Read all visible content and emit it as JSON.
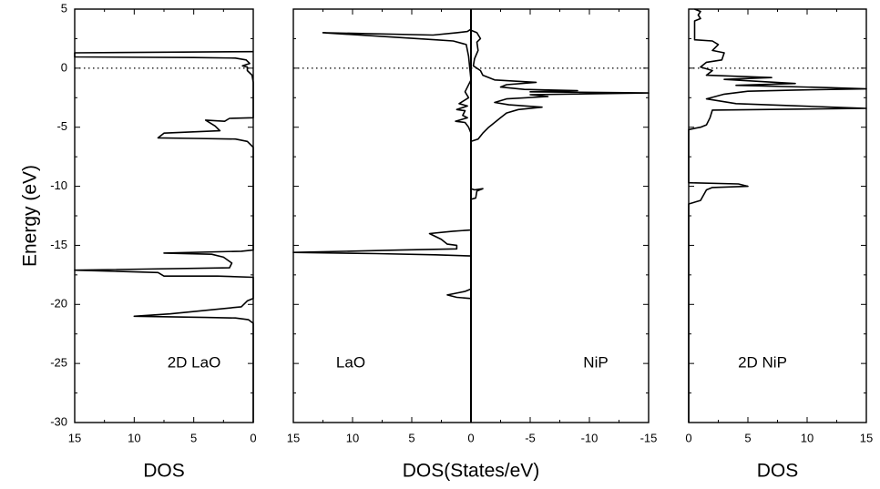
{
  "chart_data": {
    "type": "line",
    "ylabel": "Energy (eV)",
    "ylim": [
      -30,
      5
    ],
    "yticks": [
      "5",
      "0",
      "-5",
      "-10",
      "-15",
      "-20",
      "-25",
      "-30"
    ],
    "panels": [
      {
        "id": "left",
        "xlabel": "DOS",
        "xlim": [
          15,
          0
        ],
        "xticks": [
          "15",
          "10",
          "5",
          "0"
        ],
        "labels": [
          "2D LaO"
        ],
        "fermi_level": 0,
        "series": [
          {
            "points": [
              [
                0,
                1.4
              ],
              [
                15,
                1.3
              ],
              [
                15,
                0.95
              ],
              [
                5,
                0.9
              ],
              [
                1.5,
                0.85
              ],
              [
                0.6,
                0.7
              ],
              [
                0.3,
                0.4
              ],
              [
                0.9,
                0.2
              ],
              [
                0.5,
                0.1
              ],
              [
                0.5,
                -0.2
              ],
              [
                0.1,
                -0.6
              ],
              [
                0,
                -1.2
              ],
              [
                0,
                -4.2
              ],
              [
                2,
                -4.25
              ],
              [
                2.4,
                -4.5
              ],
              [
                4,
                -4.4
              ],
              [
                3.2,
                -4.9
              ],
              [
                2.8,
                -5.3
              ],
              [
                7.5,
                -5.5
              ],
              [
                8,
                -5.9
              ],
              [
                5,
                -5.95
              ],
              [
                1.5,
                -6.0
              ],
              [
                0.5,
                -6.2
              ],
              [
                0.2,
                -6.5
              ],
              [
                0,
                -6.7
              ],
              [
                0,
                -15.4
              ],
              [
                1,
                -15.5
              ],
              [
                7.5,
                -15.65
              ],
              [
                3.5,
                -15.75
              ],
              [
                2.5,
                -16.0
              ],
              [
                1.8,
                -16.5
              ],
              [
                2,
                -16.9
              ],
              [
                15,
                -17.1
              ],
              [
                8,
                -17.3
              ],
              [
                7.5,
                -17.6
              ],
              [
                3,
                -17.6
              ],
              [
                0,
                -17.7
              ],
              [
                0,
                -19.5
              ],
              [
                0.5,
                -19.7
              ],
              [
                1,
                -20.2
              ],
              [
                7,
                -20.8
              ],
              [
                10,
                -21.0
              ],
              [
                4,
                -21.1
              ],
              [
                1.5,
                -21.15
              ],
              [
                0.4,
                -21.3
              ],
              [
                0,
                -21.6
              ],
              [
                0,
                -30
              ]
            ]
          }
        ]
      },
      {
        "id": "middle",
        "xlabel": "DOS(States/eV)",
        "xlim": [
          15,
          -15
        ],
        "xticks": [
          "15",
          "10",
          "5",
          "0",
          "-5",
          "-10",
          "-15"
        ],
        "labels": [
          "LaO",
          "NiP"
        ],
        "fermi_level": 0,
        "series": [
          {
            "name": "LaO",
            "points": [
              [
                0,
                5
              ],
              [
                0,
                3.3
              ],
              [
                0.3,
                3.1
              ],
              [
                1.2,
                3.0
              ],
              [
                3.2,
                2.8
              ],
              [
                12.5,
                3.0
              ],
              [
                3,
                2.4
              ],
              [
                1.5,
                2.3
              ],
              [
                0.4,
                2.0
              ],
              [
                0.2,
                1.0
              ],
              [
                0.1,
                0
              ],
              [
                0,
                -1.0
              ],
              [
                0.5,
                -2.0
              ],
              [
                0.2,
                -2.5
              ],
              [
                1,
                -3.0
              ],
              [
                0.3,
                -3.2
              ],
              [
                1.2,
                -3.5
              ],
              [
                0.5,
                -3.6
              ],
              [
                0.7,
                -4.0
              ],
              [
                0.3,
                -4.2
              ],
              [
                1.3,
                -4.5
              ],
              [
                0.5,
                -4.6
              ],
              [
                0.2,
                -5.0
              ],
              [
                0,
                -5.5
              ],
              [
                0,
                -10.2
              ],
              [
                -0.3,
                -10.3
              ],
              [
                -1,
                -10.2
              ],
              [
                -0.5,
                -10.4
              ],
              [
                -0.4,
                -11.0
              ],
              [
                0,
                -11.1
              ],
              [
                0,
                -13.7
              ],
              [
                1.5,
                -13.8
              ],
              [
                3.5,
                -14.0
              ],
              [
                2.5,
                -14.5
              ],
              [
                2,
                -14.9
              ],
              [
                1.2,
                -15.0
              ],
              [
                1.2,
                -15.3
              ],
              [
                6,
                -15.4
              ],
              [
                15,
                -15.6
              ],
              [
                8,
                -15.7
              ],
              [
                3,
                -15.8
              ],
              [
                0,
                -15.9
              ],
              [
                0,
                -18.7
              ],
              [
                0.5,
                -18.9
              ],
              [
                1.5,
                -19.1
              ],
              [
                2,
                -19.2
              ],
              [
                1.2,
                -19.4
              ],
              [
                0,
                -19.5
              ],
              [
                0,
                -30
              ]
            ]
          },
          {
            "name": "NiP",
            "points": [
              [
                0,
                5
              ],
              [
                0,
                3.2
              ],
              [
                -0.5,
                3.0
              ],
              [
                -0.8,
                2.5
              ],
              [
                -0.5,
                2.2
              ],
              [
                -0.6,
                1.5
              ],
              [
                -0.3,
                0.8
              ],
              [
                -0.2,
                0.2
              ],
              [
                -0.8,
                -0.2
              ],
              [
                -1,
                -0.6
              ],
              [
                -2,
                -1.0
              ],
              [
                -5.5,
                -1.2
              ],
              [
                -3,
                -1.4
              ],
              [
                -2.5,
                -1.6
              ],
              [
                -4.5,
                -1.8
              ],
              [
                -9,
                -1.9
              ],
              [
                -5,
                -2.0
              ],
              [
                -15,
                -2.1
              ],
              [
                -5,
                -2.25
              ],
              [
                -6.5,
                -2.4
              ],
              [
                -3,
                -2.6
              ],
              [
                -2,
                -2.9
              ],
              [
                -3.2,
                -3.1
              ],
              [
                -6,
                -3.3
              ],
              [
                -4,
                -3.5
              ],
              [
                -3,
                -3.8
              ],
              [
                -2.5,
                -4.2
              ],
              [
                -2,
                -4.6
              ],
              [
                -1.5,
                -5.0
              ],
              [
                -1,
                -5.5
              ],
              [
                -0.6,
                -6.0
              ],
              [
                0,
                -6.2
              ],
              [
                0,
                -30
              ]
            ]
          }
        ]
      },
      {
        "id": "right",
        "xlabel": "DOS",
        "xlim": [
          0,
          15
        ],
        "xticks": [
          "0",
          "5",
          "10",
          "15"
        ],
        "labels": [
          "2D NiP"
        ],
        "fermi_level": 0,
        "series": [
          {
            "points": [
              [
                0.5,
                5
              ],
              [
                1,
                4.8
              ],
              [
                0.8,
                4.5
              ],
              [
                1,
                4.2
              ],
              [
                0.5,
                4.0
              ],
              [
                0.5,
                2.4
              ],
              [
                2,
                2.3
              ],
              [
                2.5,
                2.0
              ],
              [
                2,
                1.5
              ],
              [
                3,
                1.3
              ],
              [
                2.8,
                0.7
              ],
              [
                1.5,
                0.5
              ],
              [
                1,
                0.1
              ],
              [
                2,
                -0.2
              ],
              [
                1.5,
                -0.6
              ],
              [
                7,
                -0.8
              ],
              [
                3,
                -0.95
              ],
              [
                9,
                -1.3
              ],
              [
                4,
                -1.45
              ],
              [
                12,
                -1.65
              ],
              [
                15,
                -1.75
              ],
              [
                9,
                -1.85
              ],
              [
                5,
                -1.95
              ],
              [
                3,
                -2.2
              ],
              [
                1.5,
                -2.6
              ],
              [
                4,
                -3.0
              ],
              [
                15,
                -3.4
              ],
              [
                2,
                -3.55
              ],
              [
                1.8,
                -4.2
              ],
              [
                1.5,
                -4.8
              ],
              [
                1,
                -5.0
              ],
              [
                0,
                -5.2
              ],
              [
                0,
                -9.7
              ],
              [
                4.2,
                -9.8
              ],
              [
                5,
                -10.0
              ],
              [
                2,
                -10.1
              ],
              [
                1.5,
                -10.3
              ],
              [
                1,
                -11.2
              ],
              [
                0,
                -11.5
              ],
              [
                0,
                -30
              ]
            ]
          }
        ]
      }
    ]
  }
}
